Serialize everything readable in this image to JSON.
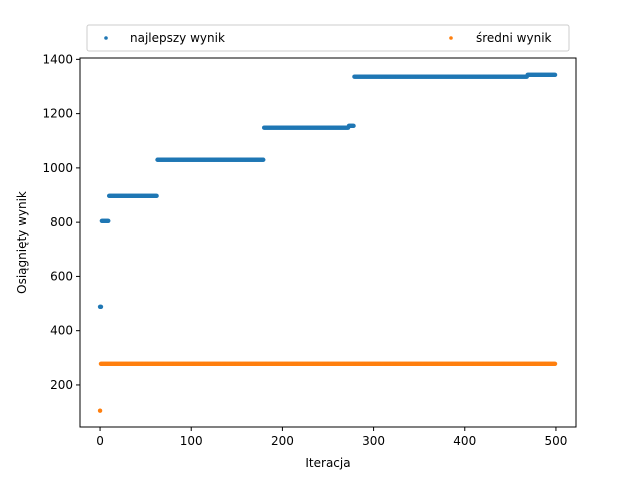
{
  "chart_data": {
    "type": "scatter",
    "title": "",
    "xlabel": "Iteracja",
    "ylabel": "Osiągnięty wynik",
    "xlim": [
      -22,
      522
    ],
    "ylim": [
      45,
      1405
    ],
    "xticks": [
      0,
      100,
      200,
      300,
      400,
      500
    ],
    "yticks": [
      200,
      400,
      600,
      800,
      1000,
      1200,
      1400
    ],
    "grid": false,
    "legend_position": "top",
    "series": [
      {
        "name": "najlepszy wynik",
        "color": "#1f77b4",
        "segments": [
          {
            "x_from": 0,
            "x_to": 1,
            "y": 488
          },
          {
            "x_from": 2,
            "x_to": 9,
            "y": 805
          },
          {
            "x_from": 10,
            "x_to": 62,
            "y": 897
          },
          {
            "x_from": 63,
            "x_to": 179,
            "y": 1030
          },
          {
            "x_from": 180,
            "x_to": 272,
            "y": 1148
          },
          {
            "x_from": 273,
            "x_to": 278,
            "y": 1155
          },
          {
            "x_from": 279,
            "x_to": 468,
            "y": 1336
          },
          {
            "x_from": 469,
            "x_to": 499,
            "y": 1343
          }
        ]
      },
      {
        "name": "średni wynik",
        "color": "#ff7f0e",
        "segments": [
          {
            "x_from": 0,
            "x_to": 0,
            "y": 105
          },
          {
            "x_from": 1,
            "x_to": 499,
            "y": 278
          }
        ]
      }
    ]
  }
}
